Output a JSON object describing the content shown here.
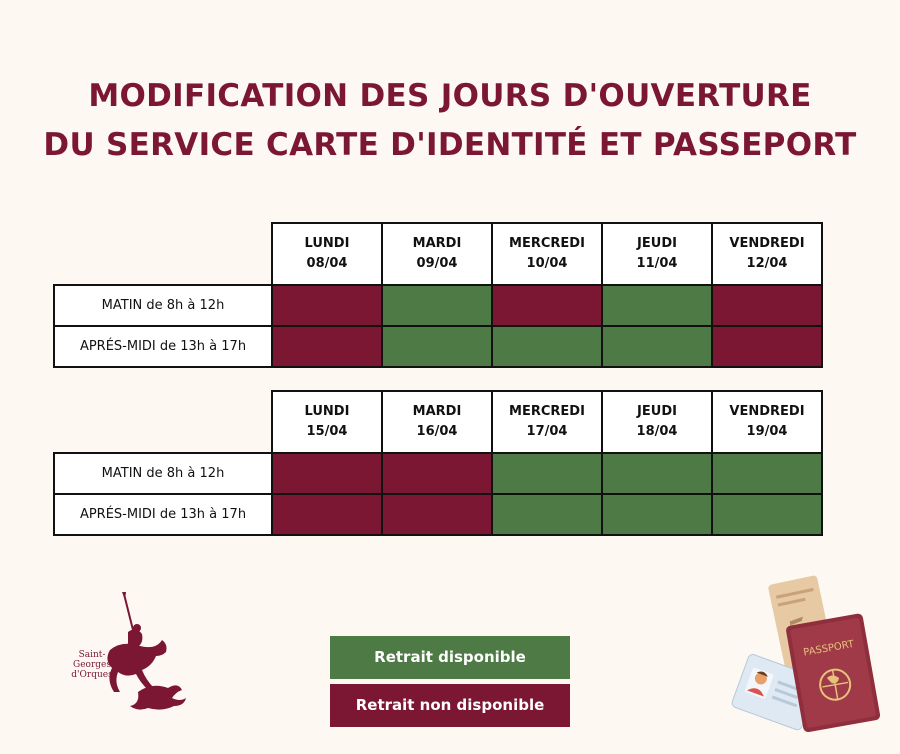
{
  "title": {
    "line1": "MODIFICATION DES JOURS D'OUVERTURE",
    "line2": "DU SERVICE CARTE D'IDENTITÉ ET PASSEPORT"
  },
  "weeks": [
    {
      "days": [
        {
          "name": "LUNDI",
          "date": "08/04"
        },
        {
          "name": "MARDI",
          "date": "09/04"
        },
        {
          "name": "MERCREDI",
          "date": "10/04"
        },
        {
          "name": "JEUDI",
          "date": "11/04"
        },
        {
          "name": "VENDREDI",
          "date": "12/04"
        }
      ],
      "rows": [
        {
          "label": "MATIN de 8h à 12h",
          "availability": [
            false,
            true,
            false,
            true,
            false
          ]
        },
        {
          "label": "APRÉS-MIDI de 13h à 17h",
          "availability": [
            false,
            true,
            true,
            true,
            false
          ]
        }
      ]
    },
    {
      "days": [
        {
          "name": "LUNDI",
          "date": "15/04"
        },
        {
          "name": "MARDI",
          "date": "16/04"
        },
        {
          "name": "MERCREDI",
          "date": "17/04"
        },
        {
          "name": "JEUDI",
          "date": "18/04"
        },
        {
          "name": "VENDREDI",
          "date": "19/04"
        }
      ],
      "rows": [
        {
          "label": "MATIN de 8h à 12h",
          "availability": [
            false,
            false,
            true,
            true,
            true
          ]
        },
        {
          "label": "APRÉS-MIDI de 13h à 17h",
          "availability": [
            false,
            false,
            true,
            true,
            true
          ]
        }
      ]
    }
  ],
  "legend": {
    "available": "Retrait disponible",
    "unavailable": "Retrait non disponible"
  },
  "logo": {
    "line1": "Saint-Georges",
    "line2": "d'Orques"
  },
  "illustration": {
    "passport_label": "PASSPORT",
    "icon": "passport-and-id-card-icon"
  },
  "colors": {
    "available": "#4e7a45",
    "unavailable": "#7b1633",
    "title": "#7b1633",
    "background": "#fdf9f2"
  }
}
